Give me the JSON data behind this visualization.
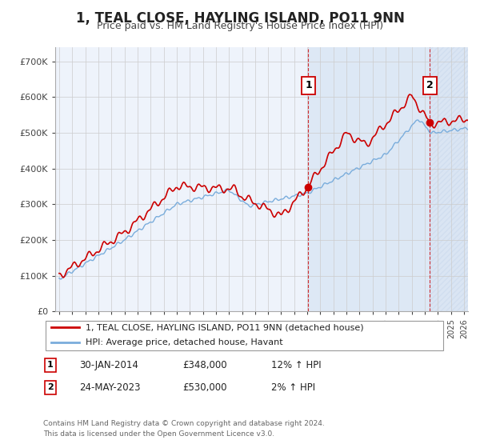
{
  "title": "1, TEAL CLOSE, HAYLING ISLAND, PO11 9NN",
  "subtitle": "Price paid vs. HM Land Registry's House Price Index (HPI)",
  "title_fontsize": 12,
  "subtitle_fontsize": 9,
  "ylabel_ticks": [
    "£0",
    "£100K",
    "£200K",
    "£300K",
    "£400K",
    "£500K",
    "£600K",
    "£700K"
  ],
  "ytick_vals": [
    0,
    100000,
    200000,
    300000,
    400000,
    500000,
    600000,
    700000
  ],
  "ylim": [
    0,
    740000
  ],
  "xlim_start": 1994.7,
  "xlim_end": 2026.3,
  "sale1_date": 2014.08,
  "sale1_price": 348000,
  "sale1_label": "1",
  "sale2_date": 2023.39,
  "sale2_price": 530000,
  "sale2_label": "2",
  "legend_line1": "1, TEAL CLOSE, HAYLING ISLAND, PO11 9NN (detached house)",
  "legend_line2": "HPI: Average price, detached house, Havant",
  "table_row1": [
    "1",
    "30-JAN-2014",
    "£348,000",
    "12% ↑ HPI"
  ],
  "table_row2": [
    "2",
    "24-MAY-2023",
    "£530,000",
    "2% ↑ HPI"
  ],
  "footer1": "Contains HM Land Registry data © Crown copyright and database right 2024.",
  "footer2": "This data is licensed under the Open Government Licence v3.0.",
  "red_color": "#cc0000",
  "blue_color": "#7aaddc",
  "shade_color": "#dde8f5",
  "hatch_color": "#c8d8ec",
  "bg_color": "#ffffff",
  "grid_color": "#cccccc",
  "plot_bg": "#eef3fb"
}
